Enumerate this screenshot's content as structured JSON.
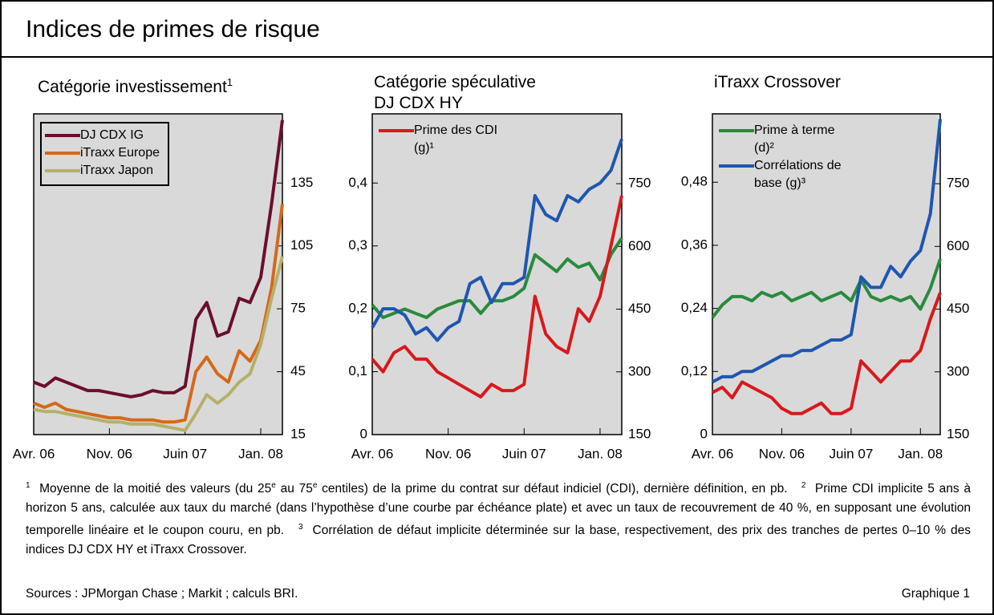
{
  "header": {
    "title": "Indices de primes de risque"
  },
  "chart_data": [
    {
      "type": "line",
      "title": "Catégorie investissement",
      "title_note": "1",
      "x": [
        "2006-04",
        "2006-05",
        "2006-06",
        "2006-07",
        "2006-08",
        "2006-09",
        "2006-10",
        "2006-11",
        "2006-12",
        "2007-01",
        "2007-02",
        "2007-03",
        "2007-04",
        "2007-05",
        "2007-06",
        "2007-07",
        "2007-08",
        "2007-09",
        "2007-10",
        "2007-11",
        "2007-12",
        "2008-01",
        "2008-02",
        "2008-03"
      ],
      "xlim": [
        "2006-04",
        "2008-03"
      ],
      "xticks": [
        {
          "value": "2006-04",
          "label": "Avr. 06"
        },
        {
          "value": "2006-11",
          "label": "Nov. 06"
        },
        {
          "value": "2007-06",
          "label": "Juin 07"
        },
        {
          "value": "2008-01",
          "label": "Jan. 08"
        }
      ],
      "ylim": [
        15,
        168
      ],
      "yticks": [
        15,
        45,
        75,
        105,
        135
      ],
      "y_axis_position": "right",
      "legend": "upper left",
      "legend_box": true,
      "series": [
        {
          "name": "DJ CDX IG",
          "color": "#6b0f2a",
          "values": [
            40,
            38,
            42,
            40,
            38,
            36,
            36,
            35,
            34,
            33,
            34,
            36,
            35,
            35,
            38,
            70,
            78,
            62,
            64,
            80,
            78,
            90,
            125,
            165
          ]
        },
        {
          "name": "iTraxx Europe",
          "color": "#d4691a",
          "values": [
            30,
            28,
            30,
            27,
            26,
            25,
            24,
            23,
            23,
            22,
            22,
            22,
            21,
            21,
            22,
            45,
            52,
            44,
            40,
            55,
            50,
            60,
            85,
            125
          ]
        },
        {
          "name": "iTraxx Japon",
          "color": "#b5b06a",
          "values": [
            27,
            26,
            26,
            25,
            24,
            23,
            22,
            21,
            21,
            20,
            20,
            20,
            19,
            18,
            17,
            25,
            34,
            30,
            34,
            40,
            44,
            58,
            80,
            100
          ]
        }
      ]
    },
    {
      "type": "line",
      "title": "Catégorie spéculative",
      "subtitle": "DJ CDX HY",
      "x": [
        "2006-04",
        "2006-05",
        "2006-06",
        "2006-07",
        "2006-08",
        "2006-09",
        "2006-10",
        "2006-11",
        "2006-12",
        "2007-01",
        "2007-02",
        "2007-03",
        "2007-04",
        "2007-05",
        "2007-06",
        "2007-07",
        "2007-08",
        "2007-09",
        "2007-10",
        "2007-11",
        "2007-12",
        "2008-01",
        "2008-02",
        "2008-03"
      ],
      "xlim": [
        "2006-04",
        "2008-03"
      ],
      "xticks": [
        {
          "value": "2006-04",
          "label": "Avr. 06"
        },
        {
          "value": "2006-11",
          "label": "Nov. 06"
        },
        {
          "value": "2007-06",
          "label": "Juin 07"
        },
        {
          "value": "2008-01",
          "label": "Jan. 08"
        }
      ],
      "ylim": [
        0,
        0.51
      ],
      "yticks": [
        0,
        {
          "value": 0.1,
          "label": "0,1"
        },
        {
          "value": 0.2,
          "label": "0,2"
        },
        {
          "value": 0.3,
          "label": "0,3"
        },
        {
          "value": 0.4,
          "label": "0,4"
        }
      ],
      "y2lim": [
        150,
        917
      ],
      "y2ticks": [
        150,
        300,
        450,
        600,
        750
      ],
      "legend": "upper left",
      "series": [
        {
          "color": "#2a8a3e",
          "axis": "y2",
          "values": [
            460,
            430,
            440,
            450,
            440,
            430,
            450,
            460,
            470,
            470,
            440,
            470,
            470,
            480,
            500,
            580,
            560,
            540,
            570,
            550,
            560,
            520,
            580,
            620
          ]
        },
        {
          "color": "#1f56b0",
          "values": [
            0.17,
            0.2,
            0.2,
            0.19,
            0.16,
            0.17,
            0.15,
            0.17,
            0.18,
            0.24,
            0.25,
            0.21,
            0.24,
            0.24,
            0.25,
            0.38,
            0.35,
            0.34,
            0.38,
            0.37,
            0.39,
            0.4,
            0.42,
            0.47
          ]
        },
        {
          "name": "Prime des CDI (g)¹",
          "color": "#d7191c",
          "values": [
            0.12,
            0.1,
            0.13,
            0.14,
            0.12,
            0.12,
            0.1,
            0.09,
            0.08,
            0.07,
            0.06,
            0.08,
            0.07,
            0.07,
            0.08,
            0.22,
            0.16,
            0.14,
            0.13,
            0.2,
            0.18,
            0.22,
            0.3,
            0.38
          ]
        }
      ]
    },
    {
      "type": "line",
      "title": "iTraxx Crossover",
      "x": [
        "2006-04",
        "2006-05",
        "2006-06",
        "2006-07",
        "2006-08",
        "2006-09",
        "2006-10",
        "2006-11",
        "2006-12",
        "2007-01",
        "2007-02",
        "2007-03",
        "2007-04",
        "2007-05",
        "2007-06",
        "2007-07",
        "2007-08",
        "2007-09",
        "2007-10",
        "2007-11",
        "2007-12",
        "2008-01",
        "2008-02",
        "2008-03"
      ],
      "xlim": [
        "2006-04",
        "2008-03"
      ],
      "xticks": [
        {
          "value": "2006-04",
          "label": "Avr. 06"
        },
        {
          "value": "2006-11",
          "label": "Nov. 06"
        },
        {
          "value": "2007-06",
          "label": "Juin 07"
        },
        {
          "value": "2008-01",
          "label": "Jan. 08"
        }
      ],
      "ylim": [
        0,
        0.61
      ],
      "yticks": [
        0,
        {
          "value": 0.12,
          "label": "0,12"
        },
        {
          "value": 0.24,
          "label": "0,24"
        },
        {
          "value": 0.36,
          "label": "0,36"
        },
        {
          "value": 0.48,
          "label": "0,48"
        }
      ],
      "y2lim": [
        150,
        917
      ],
      "y2ticks": [
        150,
        300,
        450,
        600,
        750
      ],
      "legend": "upper left",
      "series": [
        {
          "color": "#d7191c",
          "values": [
            0.08,
            0.09,
            0.07,
            0.1,
            0.09,
            0.08,
            0.07,
            0.05,
            0.04,
            0.04,
            0.05,
            0.06,
            0.04,
            0.04,
            0.05,
            0.14,
            0.12,
            0.1,
            0.12,
            0.14,
            0.14,
            0.16,
            0.22,
            0.27
          ]
        },
        {
          "name": "Prime à terme (d)²",
          "color": "#2a8a3e",
          "axis": "y2",
          "values": [
            430,
            460,
            480,
            480,
            470,
            490,
            480,
            490,
            470,
            480,
            490,
            470,
            480,
            490,
            470,
            520,
            480,
            470,
            480,
            470,
            480,
            450,
            500,
            570
          ]
        },
        {
          "name": "Corrélations de base (g)³",
          "color": "#1f56b0",
          "values": [
            0.1,
            0.11,
            0.11,
            0.12,
            0.12,
            0.13,
            0.14,
            0.15,
            0.15,
            0.16,
            0.16,
            0.17,
            0.18,
            0.18,
            0.19,
            0.3,
            0.28,
            0.28,
            0.32,
            0.3,
            0.33,
            0.35,
            0.42,
            0.6
          ]
        }
      ]
    }
  ],
  "footnotes": [
    {
      "marker": "1",
      "parts": [
        "Moyenne de la moitié des valeurs (du 25",
        "e",
        " au 75",
        "e",
        " centiles) de la prime du contrat sur défaut indiciel (CDI), dernière définition, en pb."
      ]
    },
    {
      "marker": "2",
      "parts": [
        "Prime CDI implicite 5 ans à horizon 5 ans, calculée aux taux du marché (dans l’hypothèse d’une courbe par échéance plate) et avec un taux de recouvrement de 40 %, en supposant une évolution temporelle linéaire et le coupon couru, en pb."
      ]
    },
    {
      "marker": "3",
      "parts": [
        "Corrélation de défaut implicite déterminée sur la base, respectivement, des prix des tranches de pertes 0–10 % des indices DJ CDX HY et iTraxx Crossover."
      ]
    }
  ],
  "sources": "Sources : JPMorgan Chase ; Markit ; calculs BRI.",
  "figure_label": "Graphique 1"
}
